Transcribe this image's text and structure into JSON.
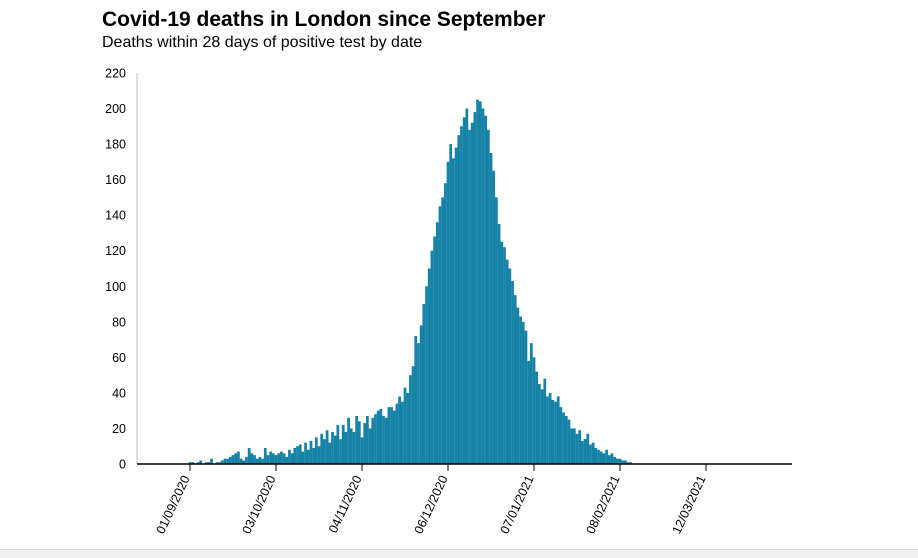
{
  "chart_data": {
    "type": "bar",
    "title": "Covid-19 deaths in London since September",
    "subtitle": "Deaths within 28 days of positive test by date",
    "xlabel": "",
    "ylabel": "",
    "ylim": [
      0,
      220
    ],
    "yticks": [
      0,
      20,
      40,
      60,
      80,
      100,
      120,
      140,
      160,
      180,
      200,
      220
    ],
    "xtick_labels": [
      "01/09/2020",
      "03/10/2020",
      "04/11/2020",
      "06/12/2020",
      "07/01/2021",
      "08/02/2021",
      "12/03/2021"
    ],
    "xtick_days": [
      0,
      32,
      64,
      96,
      128,
      160,
      192
    ],
    "start_day": -20,
    "bar_color": "#1582a6",
    "values": [
      0,
      0,
      0,
      0,
      0,
      0,
      0,
      0,
      0,
      0,
      0,
      0,
      0,
      0,
      0,
      0,
      0,
      0,
      0,
      0,
      1,
      1,
      0,
      1,
      2,
      0,
      1,
      1,
      3,
      0,
      1,
      1,
      2,
      3,
      3,
      4,
      5,
      6,
      7,
      3,
      2,
      4,
      9,
      6,
      5,
      3,
      4,
      3,
      9,
      5,
      7,
      6,
      5,
      6,
      7,
      6,
      4,
      8,
      6,
      9,
      10,
      11,
      7,
      12,
      8,
      13,
      9,
      15,
      10,
      17,
      14,
      19,
      12,
      18,
      16,
      22,
      14,
      22,
      18,
      26,
      20,
      18,
      27,
      24,
      15,
      23,
      27,
      20,
      26,
      28,
      30,
      31,
      27,
      26,
      32,
      32,
      30,
      34,
      38,
      35,
      43,
      40,
      50,
      55,
      72,
      68,
      78,
      90,
      100,
      110,
      120,
      128,
      136,
      145,
      150,
      158,
      170,
      180,
      172,
      178,
      185,
      190,
      195,
      200,
      188,
      192,
      198,
      205,
      204,
      200,
      196,
      188,
      175,
      165,
      150,
      135,
      125,
      122,
      115,
      110,
      103,
      95,
      88,
      83,
      80,
      75,
      58,
      68,
      60,
      52,
      45,
      42,
      48,
      38,
      40,
      36,
      35,
      38,
      32,
      29,
      27,
      25,
      20,
      20,
      17,
      19,
      13,
      14,
      17,
      11,
      12,
      9,
      8,
      7,
      6,
      8,
      5,
      6,
      4,
      3,
      3,
      2,
      2,
      1,
      1,
      0,
      0,
      0,
      0,
      0,
      0,
      0,
      0,
      0,
      0,
      0,
      0,
      0,
      0,
      0
    ]
  }
}
